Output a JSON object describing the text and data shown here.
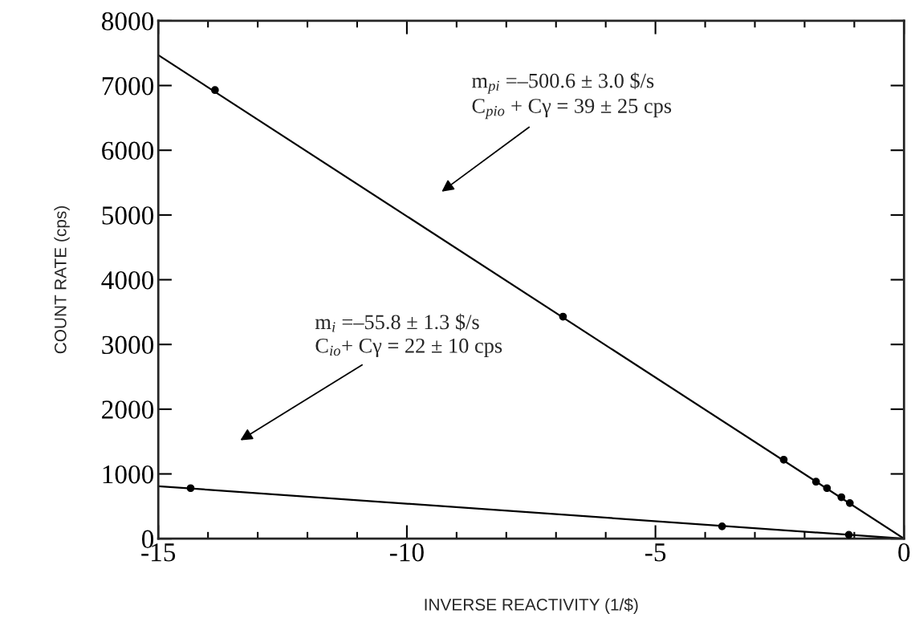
{
  "chart_data": {
    "type": "scatter",
    "xlabel": "INVERSE REACTIVITY (1/$)",
    "ylabel": "COUNT RATE (cps)",
    "xlim": [
      -15,
      0
    ],
    "xticks": [
      -15,
      -10,
      -5,
      0
    ],
    "ylim": [
      0,
      8000
    ],
    "yticks": [
      0,
      1000,
      2000,
      3000,
      4000,
      5000,
      6000,
      7000,
      8000
    ],
    "grid": false,
    "marker": "circle",
    "series": [
      {
        "color": "#000000",
        "x": [
          -13.86,
          -6.86,
          -2.42,
          -1.77,
          -1.55,
          -1.26,
          -1.09
        ],
        "values": [
          6930,
          3430,
          1220,
          880,
          780,
          640,
          550
        ]
      },
      {
        "color": "#000000",
        "x": [
          -14.35,
          -3.66,
          -1.11
        ],
        "values": [
          780,
          190,
          60
        ]
      },
      {
        "type": "line",
        "color": "#000000",
        "marker": "none",
        "x": [
          -15,
          0
        ],
        "values": [
          7470,
          0
        ]
      },
      {
        "type": "line",
        "color": "#000000",
        "marker": "none",
        "x": [
          -15,
          0
        ],
        "values": [
          810,
          0
        ]
      }
    ],
    "annotations": [
      "m$_{pi}$ =–500.6 ± 3.0 $/s\nC$_{pio}$ + Cγ = 39 ± 25 cps",
      "m$_{i}$ =–55.8 ± 1.3 $/s\nC$_{io}$+ Cγ = 22 ± 10 cps"
    ]
  }
}
